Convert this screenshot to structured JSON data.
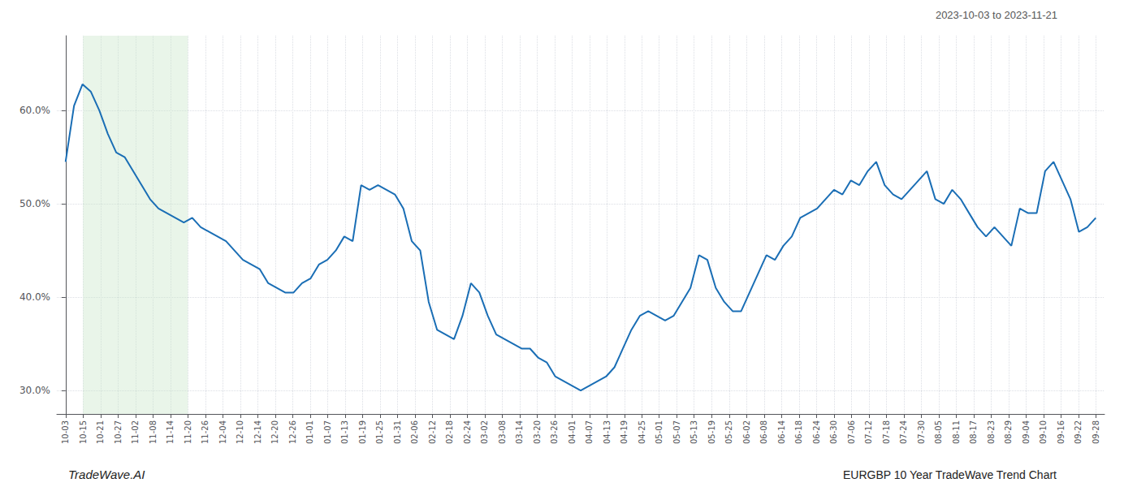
{
  "chart_data": {
    "type": "line",
    "title": "EURGBP 10 Year TradeWave Trend Chart",
    "subtitle": "2023-10-03 to 2023-11-21",
    "annotations": [
      "TradeWave.AI"
    ],
    "color": "#1a6eb5",
    "grid": true,
    "xlim": [
      -0.5,
      59.5
    ],
    "xticks": [
      {
        "value": 0,
        "label": "10-03"
      },
      {
        "value": 1,
        "label": "10-15"
      },
      {
        "value": 2,
        "label": "10-21"
      },
      {
        "value": 3,
        "label": "10-27"
      },
      {
        "value": 4,
        "label": "11-02"
      },
      {
        "value": 5,
        "label": "11-08"
      },
      {
        "value": 6,
        "label": "11-14"
      },
      {
        "value": 7,
        "label": "11-20"
      },
      {
        "value": 8,
        "label": "11-26"
      },
      {
        "value": 9,
        "label": "12-04"
      },
      {
        "value": 10,
        "label": "12-10"
      },
      {
        "value": 11,
        "label": "12-14"
      },
      {
        "value": 12,
        "label": "12-20"
      },
      {
        "value": 13,
        "label": "12-26"
      },
      {
        "value": 14,
        "label": "01-01"
      },
      {
        "value": 15,
        "label": "01-07"
      },
      {
        "value": 16,
        "label": "01-13"
      },
      {
        "value": 17,
        "label": "01-19"
      },
      {
        "value": 18,
        "label": "01-25"
      },
      {
        "value": 19,
        "label": "01-31"
      },
      {
        "value": 20,
        "label": "02-06"
      },
      {
        "value": 21,
        "label": "02-12"
      },
      {
        "value": 22,
        "label": "02-18"
      },
      {
        "value": 23,
        "label": "02-24"
      },
      {
        "value": 24,
        "label": "03-02"
      },
      {
        "value": 25,
        "label": "03-08"
      },
      {
        "value": 26,
        "label": "03-14"
      },
      {
        "value": 27,
        "label": "03-20"
      },
      {
        "value": 28,
        "label": "03-26"
      },
      {
        "value": 29,
        "label": "04-01"
      },
      {
        "value": 30,
        "label": "04-07"
      },
      {
        "value": 31,
        "label": "04-13"
      },
      {
        "value": 32,
        "label": "04-19"
      },
      {
        "value": 33,
        "label": "04-25"
      },
      {
        "value": 34,
        "label": "05-01"
      },
      {
        "value": 35,
        "label": "05-07"
      },
      {
        "value": 36,
        "label": "05-13"
      },
      {
        "value": 37,
        "label": "05-19"
      },
      {
        "value": 38,
        "label": "05-25"
      },
      {
        "value": 39,
        "label": "06-02"
      },
      {
        "value": 40,
        "label": "06-08"
      },
      {
        "value": 41,
        "label": "06-14"
      },
      {
        "value": 42,
        "label": "06-18"
      },
      {
        "value": 43,
        "label": "06-24"
      },
      {
        "value": 44,
        "label": "06-30"
      },
      {
        "value": 45,
        "label": "07-06"
      },
      {
        "value": 46,
        "label": "07-12"
      },
      {
        "value": 47,
        "label": "07-18"
      },
      {
        "value": 48,
        "label": "07-24"
      },
      {
        "value": 49,
        "label": "07-30"
      },
      {
        "value": 50,
        "label": "08-05"
      },
      {
        "value": 51,
        "label": "08-11"
      },
      {
        "value": 52,
        "label": "08-17"
      },
      {
        "value": 53,
        "label": "08-23"
      },
      {
        "value": 54,
        "label": "08-29"
      },
      {
        "value": 55,
        "label": "09-04"
      },
      {
        "value": 56,
        "label": "09-10"
      },
      {
        "value": 57,
        "label": "09-16"
      },
      {
        "value": 58,
        "label": "09-22"
      },
      {
        "value": 59,
        "label": "09-28"
      }
    ],
    "ylim": [
      27.5,
      68.0
    ],
    "yticks": [
      {
        "value": 30,
        "label": "30.0%"
      },
      {
        "value": 40,
        "label": "40.0%"
      },
      {
        "value": 50,
        "label": "50.0%"
      },
      {
        "value": 60,
        "label": "60.0%"
      }
    ],
    "shade": {
      "x": [
        1,
        7
      ],
      "color": "#c8e6c9"
    },
    "x": [
      0,
      0.4836,
      0.9672,
      1.4508,
      1.9344,
      2.418,
      2.9016,
      3.3852,
      3.8689,
      4.3525,
      4.8361,
      5.3197,
      5.8033,
      6.2869,
      6.7705,
      7.2541,
      7.7377,
      8.2213,
      8.7049,
      9.1885,
      9.6721,
      10.1557,
      10.6393,
      11.123,
      11.6066,
      12.0902,
      12.5738,
      13.0574,
      13.541,
      14.0246,
      14.5082,
      14.9918,
      15.4754,
      15.959,
      16.4426,
      16.9262,
      17.4098,
      17.8934,
      18.377,
      18.8607,
      19.3443,
      19.8279,
      20.3115,
      20.7951,
      21.2787,
      21.7623,
      22.2459,
      22.7295,
      23.2131,
      23.6967,
      24.1803,
      24.6639,
      25.1475,
      25.6311,
      26.1148,
      26.5984,
      27.082,
      27.5656,
      28.0492,
      28.5328,
      29.0164,
      29.5,
      29.9836,
      30.4672,
      30.9508,
      31.4344,
      31.918,
      32.4016,
      32.8852,
      33.3689,
      33.8525,
      34.3361,
      34.8197,
      35.3033,
      35.7869,
      36.2705,
      36.7541,
      37.2377,
      37.7213,
      38.2049,
      38.6885,
      39.1721,
      39.6557,
      40.1393,
      40.623,
      41.1066,
      41.5902,
      42.0738,
      42.5574,
      43.041,
      43.5246,
      44.0082,
      44.4918,
      44.9754,
      45.459,
      45.9426,
      46.4262,
      46.9098,
      47.3934,
      47.877,
      48.3607,
      48.8443,
      49.3279,
      49.8115,
      50.2951,
      50.7787,
      51.2623,
      51.7459,
      52.2295,
      52.7131,
      53.1967,
      53.6803,
      54.1639,
      54.6475,
      55.1311,
      55.6148,
      56.0984,
      56.582,
      57.0656,
      57.5492,
      58.0328,
      58.5164,
      59
    ],
    "values": [
      54.5,
      60.5,
      62.8,
      62.0,
      60.0,
      57.5,
      55.5,
      55.0,
      53.5,
      52.0,
      50.5,
      49.5,
      49.0,
      48.5,
      48.0,
      48.5,
      47.5,
      47.0,
      46.5,
      46.0,
      45.0,
      44.0,
      43.5,
      43.0,
      41.5,
      41.0,
      40.5,
      40.5,
      41.5,
      42.0,
      43.5,
      44.0,
      45.0,
      46.5,
      46.0,
      52.0,
      51.5,
      52.0,
      51.5,
      51.0,
      49.5,
      46.0,
      45.0,
      39.5,
      36.5,
      36.0,
      35.5,
      38.0,
      41.5,
      40.5,
      38.0,
      36.0,
      35.5,
      35.0,
      34.5,
      34.5,
      33.5,
      33.0,
      31.5,
      31.0,
      30.5,
      30.0,
      30.5,
      31.0,
      31.5,
      32.5,
      34.5,
      36.5,
      38.0,
      38.5,
      38.0,
      37.5,
      38.0,
      39.5,
      41.0,
      44.5,
      44.0,
      41.0,
      39.5,
      38.5,
      38.5,
      40.5,
      42.5,
      44.5,
      44.0,
      45.5,
      46.5,
      48.5,
      49.0,
      49.5,
      50.5,
      51.5,
      51.0,
      52.5,
      52.0,
      53.5,
      54.5,
      52.0,
      51.0,
      50.5,
      51.5,
      52.5,
      53.5,
      50.5,
      50.0,
      51.5,
      50.5,
      49.0,
      47.5,
      46.5,
      47.5,
      46.5,
      45.5,
      49.5,
      49.0,
      49.0,
      53.5,
      54.5,
      52.5,
      50.5,
      47.0,
      47.5,
      48.5
    ]
  }
}
